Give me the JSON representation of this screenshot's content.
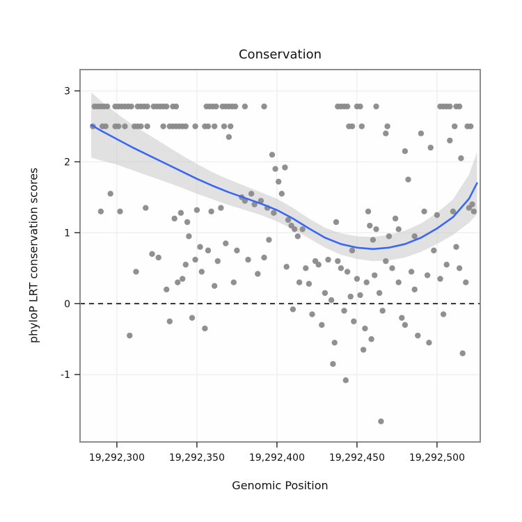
{
  "title": "Conservation",
  "x_axis_title": "Genomic Position",
  "y_axis_title": "phyloP LRT conservation scores",
  "colors": {
    "point": "#8a8a8a",
    "smooth_line": "#3a66f5",
    "ribbon": "#c8c8c8",
    "grid": "#efefef",
    "panel_border": "#8c8c8c",
    "reference_line": "#000000",
    "panel_background": "#fefefe"
  },
  "chart_data": {
    "type": "scatter",
    "title": "Conservation",
    "xlabel": "Genomic Position",
    "ylabel": "phyloP LRT conservation scores",
    "xlim": [
      19292277,
      19292527
    ],
    "ylim": [
      -1.95,
      3.3
    ],
    "grid": "major",
    "legend": "none",
    "reference_line_y": 0,
    "x_ticks": [
      {
        "value": 19292300,
        "label": "19,292,300"
      },
      {
        "value": 19292350,
        "label": "19,292,350"
      },
      {
        "value": 19292400,
        "label": "19,292,400"
      },
      {
        "value": 19292450,
        "label": "19,292,450"
      },
      {
        "value": 19292500,
        "label": "19,292,500"
      }
    ],
    "y_ticks": [
      {
        "value": -1,
        "label": "-1"
      },
      {
        "value": 0,
        "label": "0"
      },
      {
        "value": 1,
        "label": "1"
      },
      {
        "value": 2,
        "label": "2"
      },
      {
        "value": 3,
        "label": "3"
      }
    ],
    "points": [
      [
        19292286,
        2.78
      ],
      [
        19292288,
        2.78
      ],
      [
        19292290,
        2.78
      ],
      [
        19292292,
        2.78
      ],
      [
        19292294,
        2.78
      ],
      [
        19292299,
        2.78
      ],
      [
        19292301,
        2.78
      ],
      [
        19292303,
        2.78
      ],
      [
        19292305,
        2.78
      ],
      [
        19292307,
        2.78
      ],
      [
        19292309,
        2.78
      ],
      [
        19292313,
        2.78
      ],
      [
        19292315,
        2.78
      ],
      [
        19292317,
        2.78
      ],
      [
        19292319,
        2.78
      ],
      [
        19292323,
        2.78
      ],
      [
        19292325,
        2.78
      ],
      [
        19292327,
        2.78
      ],
      [
        19292329,
        2.78
      ],
      [
        19292331,
        2.78
      ],
      [
        19292335,
        2.78
      ],
      [
        19292337,
        2.78
      ],
      [
        19292356,
        2.78
      ],
      [
        19292358,
        2.78
      ],
      [
        19292360,
        2.78
      ],
      [
        19292362,
        2.78
      ],
      [
        19292366,
        2.78
      ],
      [
        19292368,
        2.78
      ],
      [
        19292370,
        2.78
      ],
      [
        19292372,
        2.78
      ],
      [
        19292374,
        2.78
      ],
      [
        19292380,
        2.78
      ],
      [
        19292392,
        2.78
      ],
      [
        19292438,
        2.78
      ],
      [
        19292440,
        2.78
      ],
      [
        19292442,
        2.78
      ],
      [
        19292444,
        2.78
      ],
      [
        19292450,
        2.78
      ],
      [
        19292452,
        2.78
      ],
      [
        19292462,
        2.78
      ],
      [
        19292502,
        2.78
      ],
      [
        19292504,
        2.78
      ],
      [
        19292506,
        2.78
      ],
      [
        19292508,
        2.78
      ],
      [
        19292512,
        2.78
      ],
      [
        19292514,
        2.78
      ],
      [
        19292285,
        2.5
      ],
      [
        19292291,
        2.5
      ],
      [
        19292293,
        2.5
      ],
      [
        19292299,
        2.5
      ],
      [
        19292301,
        2.5
      ],
      [
        19292305,
        2.5
      ],
      [
        19292311,
        2.5
      ],
      [
        19292313,
        2.5
      ],
      [
        19292315,
        2.5
      ],
      [
        19292319,
        2.5
      ],
      [
        19292329,
        2.5
      ],
      [
        19292333,
        2.5
      ],
      [
        19292335,
        2.5
      ],
      [
        19292337,
        2.5
      ],
      [
        19292339,
        2.5
      ],
      [
        19292341,
        2.5
      ],
      [
        19292343,
        2.5
      ],
      [
        19292349,
        2.5
      ],
      [
        19292355,
        2.5
      ],
      [
        19292357,
        2.5
      ],
      [
        19292361,
        2.5
      ],
      [
        19292367,
        2.5
      ],
      [
        19292371,
        2.5
      ],
      [
        19292445,
        2.5
      ],
      [
        19292447,
        2.5
      ],
      [
        19292453,
        2.5
      ],
      [
        19292469,
        2.5
      ],
      [
        19292511,
        2.5
      ],
      [
        19292519,
        2.5
      ],
      [
        19292521,
        2.5
      ],
      [
        19292290,
        1.3
      ],
      [
        19292296,
        1.55
      ],
      [
        19292302,
        1.3
      ],
      [
        19292308,
        -0.45
      ],
      [
        19292312,
        0.45
      ],
      [
        19292318,
        1.35
      ],
      [
        19292322,
        0.7
      ],
      [
        19292326,
        0.65
      ],
      [
        19292331,
        0.2
      ],
      [
        19292336,
        1.2
      ],
      [
        19292341,
        0.35
      ],
      [
        19292344,
        1.15
      ],
      [
        19292347,
        -0.2
      ],
      [
        19292349,
        0.62
      ],
      [
        19292338,
        0.3
      ],
      [
        19292345,
        0.95
      ],
      [
        19292333,
        -0.25
      ],
      [
        19292343,
        0.55
      ],
      [
        19292350,
        1.32
      ],
      [
        19292352,
        0.8
      ],
      [
        19292340,
        1.28
      ],
      [
        19292353,
        0.45
      ],
      [
        19292355,
        -0.35
      ],
      [
        19292357,
        0.75
      ],
      [
        19292359,
        1.3
      ],
      [
        19292361,
        0.25
      ],
      [
        19292363,
        0.6
      ],
      [
        19292365,
        1.35
      ],
      [
        19292368,
        0.85
      ],
      [
        19292373,
        0.3
      ],
      [
        19292375,
        0.75
      ],
      [
        19292370,
        2.35
      ],
      [
        19292378,
        1.5
      ],
      [
        19292380,
        1.45
      ],
      [
        19292382,
        0.62
      ],
      [
        19292384,
        1.55
      ],
      [
        19292386,
        1.4
      ],
      [
        19292388,
        0.42
      ],
      [
        19292390,
        1.45
      ],
      [
        19292392,
        0.65
      ],
      [
        19292394,
        1.35
      ],
      [
        19292395,
        0.9
      ],
      [
        19292397,
        2.1
      ],
      [
        19292399,
        1.9
      ],
      [
        19292401,
        1.72
      ],
      [
        19292403,
        1.55
      ],
      [
        19292405,
        1.92
      ],
      [
        19292407,
        1.18
      ],
      [
        19292409,
        1.1
      ],
      [
        19292398,
        1.28
      ],
      [
        19292406,
        0.52
      ],
      [
        19292411,
        1.05
      ],
      [
        19292413,
        0.95
      ],
      [
        19292414,
        0.3
      ],
      [
        19292410,
        -0.08
      ],
      [
        19292416,
        1.05
      ],
      [
        19292418,
        0.5
      ],
      [
        19292420,
        0.28
      ],
      [
        19292422,
        -0.15
      ],
      [
        19292424,
        0.6
      ],
      [
        19292426,
        0.55
      ],
      [
        19292428,
        -0.3
      ],
      [
        19292430,
        0.15
      ],
      [
        19292432,
        0.62
      ],
      [
        19292434,
        0.05
      ],
      [
        19292436,
        -0.55
      ],
      [
        19292437,
        1.15
      ],
      [
        19292438,
        0.6
      ],
      [
        19292440,
        0.5
      ],
      [
        19292442,
        -0.1
      ],
      [
        19292443,
        -1.08
      ],
      [
        19292444,
        0.45
      ],
      [
        19292446,
        0.1
      ],
      [
        19292448,
        -0.25
      ],
      [
        19292450,
        0.35
      ],
      [
        19292452,
        0.12
      ],
      [
        19292454,
        -0.65
      ],
      [
        19292456,
        0.3
      ],
      [
        19292457,
        1.3
      ],
      [
        19292458,
        1.1
      ],
      [
        19292460,
        0.9
      ],
      [
        19292462,
        1.05
      ],
      [
        19292464,
        0.15
      ],
      [
        19292465,
        -1.66
      ],
      [
        19292466,
        -0.1
      ],
      [
        19292468,
        0.6
      ],
      [
        19292470,
        0.95
      ],
      [
        19292435,
        -0.85
      ],
      [
        19292455,
        -0.35
      ],
      [
        19292447,
        0.75
      ],
      [
        19292461,
        0.4
      ],
      [
        19292468,
        2.4
      ],
      [
        19292459,
        -0.5
      ],
      [
        19292472,
        0.5
      ],
      [
        19292474,
        1.2
      ],
      [
        19292476,
        0.3
      ],
      [
        19292478,
        -0.2
      ],
      [
        19292480,
        2.15
      ],
      [
        19292482,
        1.75
      ],
      [
        19292484,
        0.45
      ],
      [
        19292486,
        0.95
      ],
      [
        19292488,
        -0.45
      ],
      [
        19292490,
        2.4
      ],
      [
        19292492,
        1.3
      ],
      [
        19292494,
        0.4
      ],
      [
        19292496,
        2.2
      ],
      [
        19292498,
        0.75
      ],
      [
        19292500,
        1.25
      ],
      [
        19292502,
        0.35
      ],
      [
        19292504,
        -0.15
      ],
      [
        19292506,
        0.55
      ],
      [
        19292508,
        2.3
      ],
      [
        19292510,
        1.3
      ],
      [
        19292512,
        0.8
      ],
      [
        19292514,
        0.5
      ],
      [
        19292516,
        -0.7
      ],
      [
        19292518,
        0.3
      ],
      [
        19292520,
        1.35
      ],
      [
        19292522,
        1.4
      ],
      [
        19292480,
        -0.3
      ],
      [
        19292495,
        -0.55
      ],
      [
        19292515,
        2.05
      ],
      [
        19292523,
        1.3
      ],
      [
        19292476,
        1.05
      ],
      [
        19292486,
        0.2
      ]
    ],
    "smooth": {
      "x": [
        19292284,
        19292290,
        19292300,
        19292310,
        19292320,
        19292330,
        19292340,
        19292350,
        19292360,
        19292370,
        19292380,
        19292390,
        19292400,
        19292410,
        19292420,
        19292430,
        19292440,
        19292450,
        19292460,
        19292470,
        19292480,
        19292490,
        19292500,
        19292510,
        19292520,
        19292525
      ],
      "y": [
        2.52,
        2.44,
        2.32,
        2.2,
        2.09,
        1.98,
        1.87,
        1.76,
        1.66,
        1.57,
        1.49,
        1.41,
        1.32,
        1.2,
        1.06,
        0.93,
        0.84,
        0.79,
        0.77,
        0.79,
        0.84,
        0.93,
        1.06,
        1.22,
        1.48,
        1.7
      ],
      "lower": [
        2.06,
        2.02,
        1.96,
        1.88,
        1.8,
        1.72,
        1.64,
        1.55,
        1.47,
        1.39,
        1.32,
        1.25,
        1.16,
        1.05,
        0.92,
        0.79,
        0.69,
        0.63,
        0.6,
        0.61,
        0.65,
        0.73,
        0.84,
        0.97,
        1.14,
        1.26
      ],
      "upper": [
        2.98,
        2.86,
        2.68,
        2.52,
        2.38,
        2.24,
        2.1,
        1.97,
        1.85,
        1.75,
        1.66,
        1.57,
        1.48,
        1.35,
        1.2,
        1.07,
        0.99,
        0.95,
        0.94,
        0.97,
        1.03,
        1.13,
        1.28,
        1.47,
        1.82,
        2.14
      ]
    }
  }
}
